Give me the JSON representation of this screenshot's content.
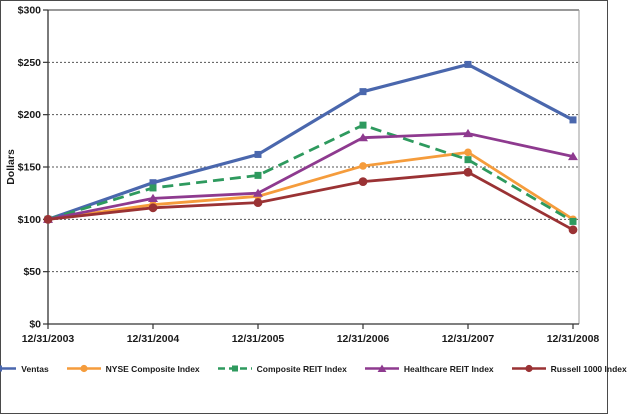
{
  "chart_data": {
    "type": "line",
    "title": "",
    "ylabel": "Dollars",
    "xlabel": "",
    "ylim": [
      0,
      300
    ],
    "y_tick_step": 50,
    "y_tick_labels": [
      "$0",
      "$50",
      "$100",
      "$150",
      "$200",
      "$250",
      "$300"
    ],
    "grid": "horizontal-dashed",
    "legend_position": "bottom",
    "x": [
      "12/31/2003",
      "12/31/2004",
      "12/31/2005",
      "12/31/2006",
      "12/31/2007",
      "12/31/2008"
    ],
    "series": [
      {
        "name": "Ventas",
        "color": "#4a67ad",
        "marker": "square",
        "line": "solid",
        "values": [
          100,
          135,
          162,
          222,
          248,
          195
        ]
      },
      {
        "name": "NYSE Composite Index",
        "color": "#f59c3c",
        "marker": "circle",
        "line": "solid",
        "values": [
          100,
          114,
          122,
          151,
          164,
          100
        ]
      },
      {
        "name": "Composite REIT Index",
        "color": "#2e9a5e",
        "marker": "square",
        "line": "dashed",
        "values": [
          100,
          130,
          142,
          190,
          157,
          98
        ]
      },
      {
        "name": "Healthcare REIT Index",
        "color": "#8e3a8f",
        "marker": "triangle",
        "line": "solid",
        "values": [
          100,
          120,
          125,
          178,
          182,
          160
        ]
      },
      {
        "name": "Russell 1000 Index",
        "color": "#9a3234",
        "marker": "circle",
        "line": "solid",
        "values": [
          100,
          111,
          116,
          136,
          145,
          90
        ]
      }
    ],
    "axis_color": "#333333",
    "gridline_color": "#555555",
    "right_border_color": "#999999"
  }
}
